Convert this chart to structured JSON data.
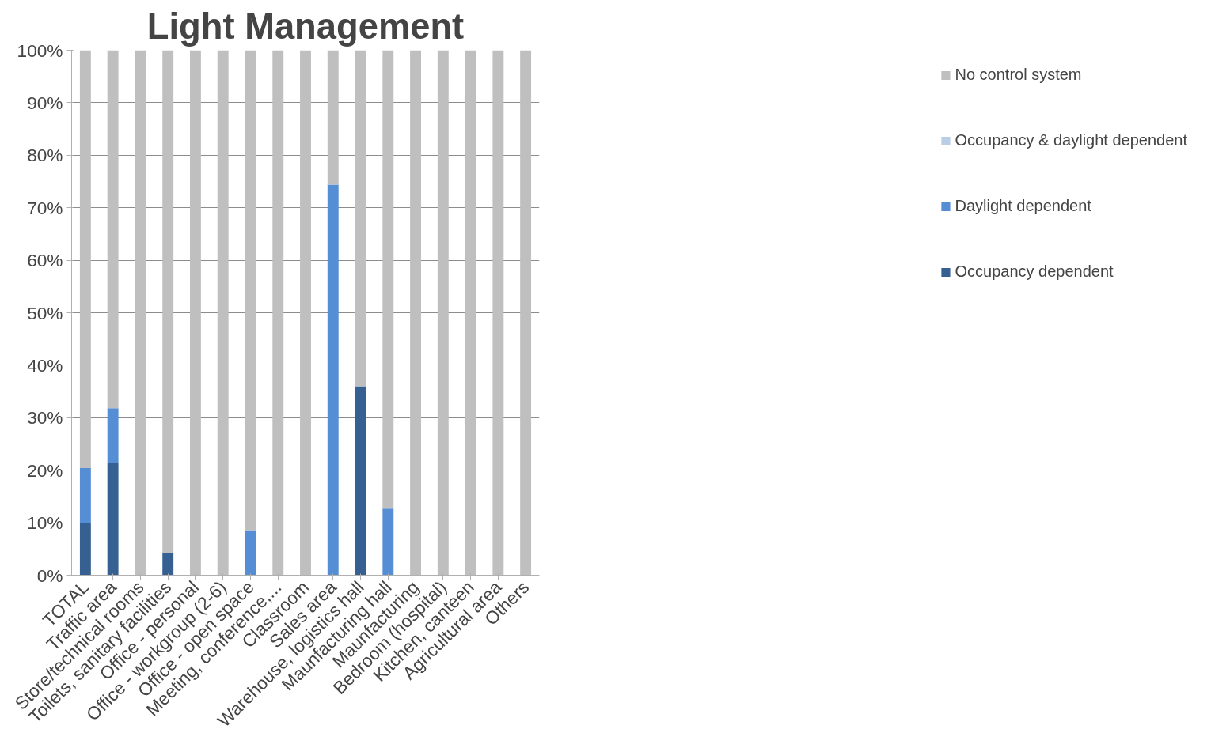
{
  "chart_data": {
    "type": "bar",
    "stacked": true,
    "title": "Light Management",
    "categories": [
      "TOTAL",
      "Traffic area",
      "Store/technical rooms",
      "Toilets, sanitary facilities",
      "Office - personal",
      "Office - workgroup (2-6)",
      "Office - open space",
      "Meeting, conference,...",
      "Classroom",
      "Sales area",
      "Warehouse, logistics hall",
      "Maunfacturing hall",
      "Maunfacturing",
      "Bedroom (hospital)",
      "Kitchen, canteen",
      "Agricultural area",
      "Others"
    ],
    "series": [
      {
        "name": "Occupancy dependent",
        "color": "#366092",
        "values": [
          10,
          21.3,
          0,
          4.3,
          0,
          0,
          0,
          0,
          0,
          0,
          36,
          0,
          0,
          0,
          0,
          0,
          0
        ]
      },
      {
        "name": "Daylight dependent",
        "color": "#558ed5",
        "values": [
          10.4,
          10.5,
          0,
          0,
          0,
          0,
          8.6,
          0,
          0,
          74.4,
          0,
          12.7,
          0,
          0,
          0,
          0,
          0
        ]
      },
      {
        "name": "Occupancy & daylight dependent",
        "color": "#b9cde5",
        "values": [
          0,
          0,
          0,
          0,
          0,
          0,
          0,
          0,
          0,
          0,
          0,
          0,
          0,
          0,
          0,
          0,
          0
        ]
      },
      {
        "name": "No control system",
        "color": "#bfbfbf",
        "values": [
          79.6,
          68.2,
          100,
          95.7,
          100,
          100,
          91.4,
          100,
          100,
          25.6,
          64,
          87.3,
          100,
          100,
          100,
          100,
          100
        ]
      }
    ],
    "ylim": [
      0,
      100
    ],
    "yticks": [
      {
        "value": 0,
        "label": "0%"
      },
      {
        "value": 10,
        "label": "10%"
      },
      {
        "value": 20,
        "label": "20%"
      },
      {
        "value": 30,
        "label": "30%"
      },
      {
        "value": 40,
        "label": "40%"
      },
      {
        "value": 50,
        "label": "50%"
      },
      {
        "value": 60,
        "label": "60%"
      },
      {
        "value": 70,
        "label": "70%"
      },
      {
        "value": 80,
        "label": "80%"
      },
      {
        "value": 90,
        "label": "90%"
      },
      {
        "value": 100,
        "label": "100%"
      }
    ],
    "grid": "y",
    "legend": "right"
  }
}
